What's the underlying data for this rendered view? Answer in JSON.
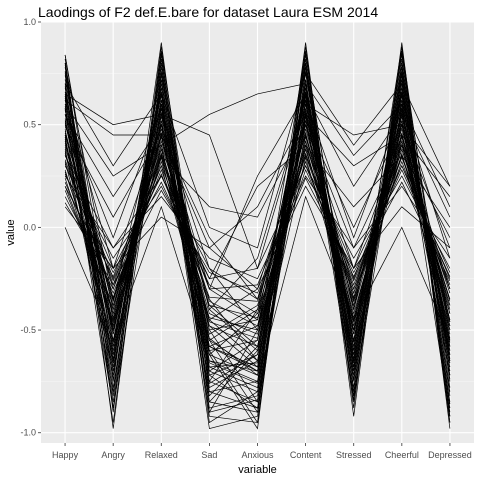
{
  "chart_data": {
    "type": "line",
    "title": "Laodings of F2 def.E.bare for dataset Laura ESM 2014",
    "xlabel": "variable",
    "ylabel": "value",
    "categories": [
      "Happy",
      "Angry",
      "Relaxed",
      "Sad",
      "Anxious",
      "Content",
      "Stressed",
      "Cheerful",
      "Depressed"
    ],
    "ylim": [
      -1.05,
      1.0
    ],
    "yticks": [
      -1.0,
      -0.5,
      0.0,
      0.5,
      1.0
    ],
    "ytick_labels": [
      "-1.0",
      "-0.5",
      "0.0",
      "0.5",
      "1.0"
    ],
    "grid": true,
    "background": "#ebebeb",
    "line_color": "#000000",
    "series": [
      {
        "values": [
          0.84,
          -0.62,
          0.72,
          -0.7,
          -0.55,
          0.85,
          -0.6,
          0.88,
          -0.75
        ]
      },
      {
        "values": [
          0.8,
          -0.75,
          0.9,
          -0.85,
          -0.9,
          0.75,
          -0.7,
          0.7,
          -0.8
        ]
      },
      {
        "values": [
          0.75,
          -0.55,
          0.6,
          -0.55,
          -0.7,
          0.7,
          -0.55,
          0.72,
          -0.65
        ]
      },
      {
        "values": [
          0.7,
          -0.85,
          0.8,
          -0.95,
          -0.8,
          0.8,
          -0.85,
          0.8,
          -0.9
        ]
      },
      {
        "values": [
          0.65,
          -0.45,
          0.55,
          -0.4,
          -0.6,
          0.65,
          -0.4,
          0.6,
          -0.55
        ]
      },
      {
        "values": [
          0.62,
          -0.7,
          0.7,
          -0.6,
          -0.95,
          0.72,
          -0.75,
          0.75,
          -0.7
        ]
      },
      {
        "values": [
          0.6,
          -0.4,
          0.5,
          -0.75,
          -0.4,
          0.6,
          -0.5,
          0.55,
          -0.5
        ]
      },
      {
        "values": [
          0.58,
          -0.95,
          0.85,
          -0.8,
          -0.75,
          0.85,
          -0.8,
          0.85,
          -0.95
        ]
      },
      {
        "values": [
          0.55,
          -0.5,
          0.45,
          -0.5,
          -0.85,
          0.55,
          -0.45,
          0.5,
          -0.45
        ]
      },
      {
        "values": [
          0.52,
          -0.6,
          0.65,
          -0.9,
          -0.5,
          0.7,
          -0.65,
          0.65,
          -0.6
        ]
      },
      {
        "values": [
          0.5,
          -0.3,
          0.4,
          -0.35,
          -0.65,
          0.5,
          -0.35,
          0.45,
          -0.4
        ]
      },
      {
        "values": [
          0.48,
          -0.8,
          0.75,
          -0.65,
          -0.7,
          0.78,
          -0.7,
          0.72,
          -0.85
        ]
      },
      {
        "values": [
          0.45,
          -0.35,
          0.35,
          -0.45,
          -0.3,
          0.45,
          -0.3,
          0.4,
          -0.35
        ]
      },
      {
        "values": [
          0.42,
          -0.65,
          0.62,
          -0.55,
          -0.9,
          0.62,
          -0.6,
          0.62,
          -0.65
        ]
      },
      {
        "values": [
          0.4,
          -0.25,
          0.3,
          -0.3,
          -0.45,
          0.4,
          -0.25,
          0.35,
          -0.3
        ]
      },
      {
        "values": [
          0.38,
          -0.72,
          0.68,
          -0.85,
          -0.6,
          0.68,
          -0.72,
          0.68,
          -0.72
        ]
      },
      {
        "values": [
          0.35,
          -0.2,
          0.25,
          -0.2,
          -0.35,
          0.35,
          -0.2,
          0.3,
          -0.25
        ]
      },
      {
        "values": [
          0.32,
          -0.58,
          0.58,
          -0.7,
          -0.8,
          0.6,
          -0.55,
          0.58,
          -0.58
        ]
      },
      {
        "values": [
          0.3,
          -0.15,
          0.2,
          -0.25,
          -0.2,
          0.3,
          -0.15,
          0.25,
          -0.2
        ]
      },
      {
        "values": [
          0.28,
          -0.48,
          0.52,
          -0.6,
          -0.55,
          0.55,
          -0.5,
          0.52,
          -0.52
        ]
      },
      {
        "values": [
          0.25,
          -0.1,
          0.15,
          -0.15,
          -0.25,
          0.25,
          -0.1,
          0.2,
          -0.15
        ]
      },
      {
        "values": [
          0.2,
          -0.4,
          0.45,
          -0.45,
          -0.65,
          0.45,
          -0.4,
          0.45,
          -0.45
        ]
      },
      {
        "values": [
          0.15,
          -0.3,
          0.3,
          -0.55,
          -0.4,
          0.35,
          -0.3,
          0.35,
          -0.35
        ]
      },
      {
        "values": [
          0.1,
          -0.2,
          0.05,
          -0.1,
          -0.3,
          0.2,
          -0.2,
          0.1,
          -0.1
        ]
      },
      {
        "values": [
          0.0,
          -0.55,
          0.1,
          -0.65,
          -0.75,
          0.15,
          -0.45,
          0.0,
          -0.55
        ]
      },
      {
        "values": [
          0.65,
          0.5,
          0.55,
          0.45,
          -0.2,
          0.6,
          0.45,
          0.5,
          0.2
        ]
      },
      {
        "values": [
          0.62,
          0.45,
          0.45,
          -0.1,
          0.1,
          0.55,
          0.3,
          0.45,
          0.15
        ]
      },
      {
        "values": [
          0.6,
          0.25,
          0.4,
          0.55,
          0.65,
          0.7,
          0.35,
          0.6,
          0.1
        ]
      },
      {
        "values": [
          0.55,
          0.15,
          0.5,
          -0.3,
          0.25,
          0.65,
          0.2,
          0.55,
          0.05
        ]
      },
      {
        "values": [
          0.45,
          -0.35,
          0.35,
          0.1,
          0.05,
          0.5,
          -0.1,
          0.4,
          -0.05
        ]
      },
      {
        "values": [
          0.7,
          0.3,
          0.65,
          0.0,
          -0.1,
          0.75,
          0.4,
          0.7,
          0.2
        ]
      },
      {
        "values": [
          0.35,
          -0.1,
          0.25,
          -0.25,
          0.2,
          0.4,
          0.1,
          0.35,
          0.0
        ]
      },
      {
        "values": [
          0.82,
          -0.9,
          0.88,
          -0.75,
          -0.85,
          0.9,
          -0.88,
          0.9,
          -0.95
        ]
      },
      {
        "values": [
          0.78,
          -0.82,
          0.82,
          -0.92,
          -0.95,
          0.82,
          -0.78,
          0.82,
          -0.88
        ]
      },
      {
        "values": [
          0.72,
          -0.68,
          0.78,
          -0.78,
          -0.65,
          0.78,
          -0.68,
          0.78,
          -0.78
        ]
      },
      {
        "values": [
          0.68,
          -0.78,
          0.72,
          -0.68,
          -0.78,
          0.72,
          -0.82,
          0.74,
          -0.82
        ]
      },
      {
        "values": [
          0.66,
          -0.52,
          0.68,
          -0.62,
          -0.72,
          0.66,
          -0.62,
          0.66,
          -0.62
        ]
      },
      {
        "values": [
          0.64,
          -0.66,
          0.58,
          -0.82,
          -0.58,
          0.64,
          -0.58,
          0.64,
          -0.68
        ]
      },
      {
        "values": [
          0.57,
          -0.44,
          0.48,
          -0.48,
          -0.68,
          0.57,
          -0.48,
          0.57,
          -0.48
        ]
      },
      {
        "values": [
          0.53,
          -0.56,
          0.56,
          -0.58,
          -0.48,
          0.58,
          -0.56,
          0.54,
          -0.56
        ]
      },
      {
        "values": [
          0.47,
          -0.38,
          0.42,
          -0.38,
          -0.58,
          0.48,
          -0.38,
          0.48,
          -0.42
        ]
      },
      {
        "values": [
          0.43,
          -0.62,
          0.52,
          -0.72,
          -0.62,
          0.52,
          -0.62,
          0.5,
          -0.62
        ]
      },
      {
        "values": [
          0.41,
          -0.28,
          0.38,
          -0.42,
          -0.52,
          0.42,
          -0.32,
          0.42,
          -0.38
        ]
      },
      {
        "values": [
          0.37,
          -0.46,
          0.44,
          -0.52,
          -0.38,
          0.46,
          -0.46,
          0.44,
          -0.46
        ]
      },
      {
        "values": [
          0.33,
          -0.34,
          0.34,
          -0.36,
          -0.48,
          0.38,
          -0.36,
          0.38,
          -0.32
        ]
      },
      {
        "values": [
          0.27,
          -0.42,
          0.38,
          -0.48,
          -0.58,
          0.42,
          -0.42,
          0.4,
          -0.42
        ]
      },
      {
        "values": [
          0.22,
          -0.32,
          0.28,
          -0.38,
          -0.44,
          0.32,
          -0.32,
          0.32,
          -0.3
        ]
      },
      {
        "values": [
          0.18,
          -0.38,
          0.32,
          -0.44,
          -0.5,
          0.38,
          -0.36,
          0.38,
          -0.38
        ]
      },
      {
        "values": [
          0.76,
          -0.88,
          0.84,
          -0.88,
          -0.82,
          0.88,
          -0.84,
          0.86,
          -0.92
        ]
      },
      {
        "values": [
          0.74,
          -0.58,
          0.76,
          -0.72,
          -0.88,
          0.76,
          -0.64,
          0.76,
          -0.74
        ]
      },
      {
        "values": [
          0.69,
          -0.74,
          0.74,
          -0.58,
          -0.68,
          0.8,
          -0.74,
          0.78,
          -0.86
        ]
      },
      {
        "values": [
          0.63,
          -0.48,
          0.66,
          -0.66,
          -0.76,
          0.68,
          -0.52,
          0.68,
          -0.58
        ]
      },
      {
        "values": [
          0.59,
          -0.64,
          0.62,
          -0.76,
          -0.62,
          0.64,
          -0.66,
          0.62,
          -0.66
        ]
      },
      {
        "values": [
          0.51,
          -0.52,
          0.54,
          -0.54,
          -0.72,
          0.56,
          -0.52,
          0.56,
          -0.54
        ]
      },
      {
        "values": [
          0.46,
          -0.42,
          0.46,
          -0.62,
          -0.42,
          0.5,
          -0.44,
          0.46,
          -0.48
        ]
      },
      {
        "values": [
          0.39,
          -0.36,
          0.36,
          -0.46,
          -0.54,
          0.44,
          -0.34,
          0.4,
          -0.36
        ]
      },
      {
        "values": [
          0.31,
          -0.26,
          0.26,
          -0.34,
          -0.36,
          0.36,
          -0.28,
          0.34,
          -0.28
        ]
      },
      {
        "values": [
          0.26,
          -0.22,
          0.22,
          -0.28,
          -0.42,
          0.28,
          -0.24,
          0.28,
          -0.24
        ]
      },
      {
        "values": [
          0.84,
          -0.5,
          0.62,
          -0.98,
          -0.92,
          0.84,
          -0.56,
          0.84,
          -0.64
        ]
      },
      {
        "values": [
          0.8,
          -0.98,
          0.86,
          -0.62,
          -0.98,
          0.86,
          -0.92,
          0.88,
          -0.98
        ]
      },
      {
        "values": [
          0.58,
          -0.88,
          0.6,
          -0.9,
          -0.84,
          0.62,
          -0.82,
          0.6,
          -0.92
        ]
      },
      {
        "values": [
          0.44,
          -0.7,
          0.5,
          -0.8,
          -0.88,
          0.54,
          -0.68,
          0.52,
          -0.72
        ]
      },
      {
        "values": [
          0.36,
          -0.5,
          0.4,
          -0.68,
          -0.66,
          0.4,
          -0.5,
          0.42,
          -0.6
        ]
      },
      {
        "values": [
          0.24,
          -0.46,
          0.34,
          -0.58,
          -0.7,
          0.34,
          -0.46,
          0.36,
          -0.5
        ]
      },
      {
        "values": [
          0.64,
          -0.2,
          0.5,
          -0.2,
          -0.5,
          0.5,
          -0.2,
          0.45,
          -0.3
        ]
      },
      {
        "values": [
          0.55,
          -0.05,
          0.58,
          -0.4,
          -0.15,
          0.62,
          -0.05,
          0.58,
          -0.15
        ]
      },
      {
        "values": [
          0.49,
          0.05,
          0.46,
          -0.05,
          -0.35,
          0.52,
          0.0,
          0.5,
          -0.1
        ]
      },
      {
        "values": [
          0.79,
          -0.36,
          0.64,
          -0.5,
          -0.45,
          0.66,
          -0.4,
          0.66,
          -0.46
        ]
      },
      {
        "values": [
          0.2,
          -0.24,
          0.36,
          -0.3,
          -0.28,
          0.3,
          -0.26,
          0.3,
          -0.22
        ]
      },
      {
        "values": [
          0.12,
          -0.28,
          0.18,
          -0.22,
          -0.32,
          0.24,
          -0.22,
          0.22,
          -0.26
        ]
      }
    ]
  }
}
